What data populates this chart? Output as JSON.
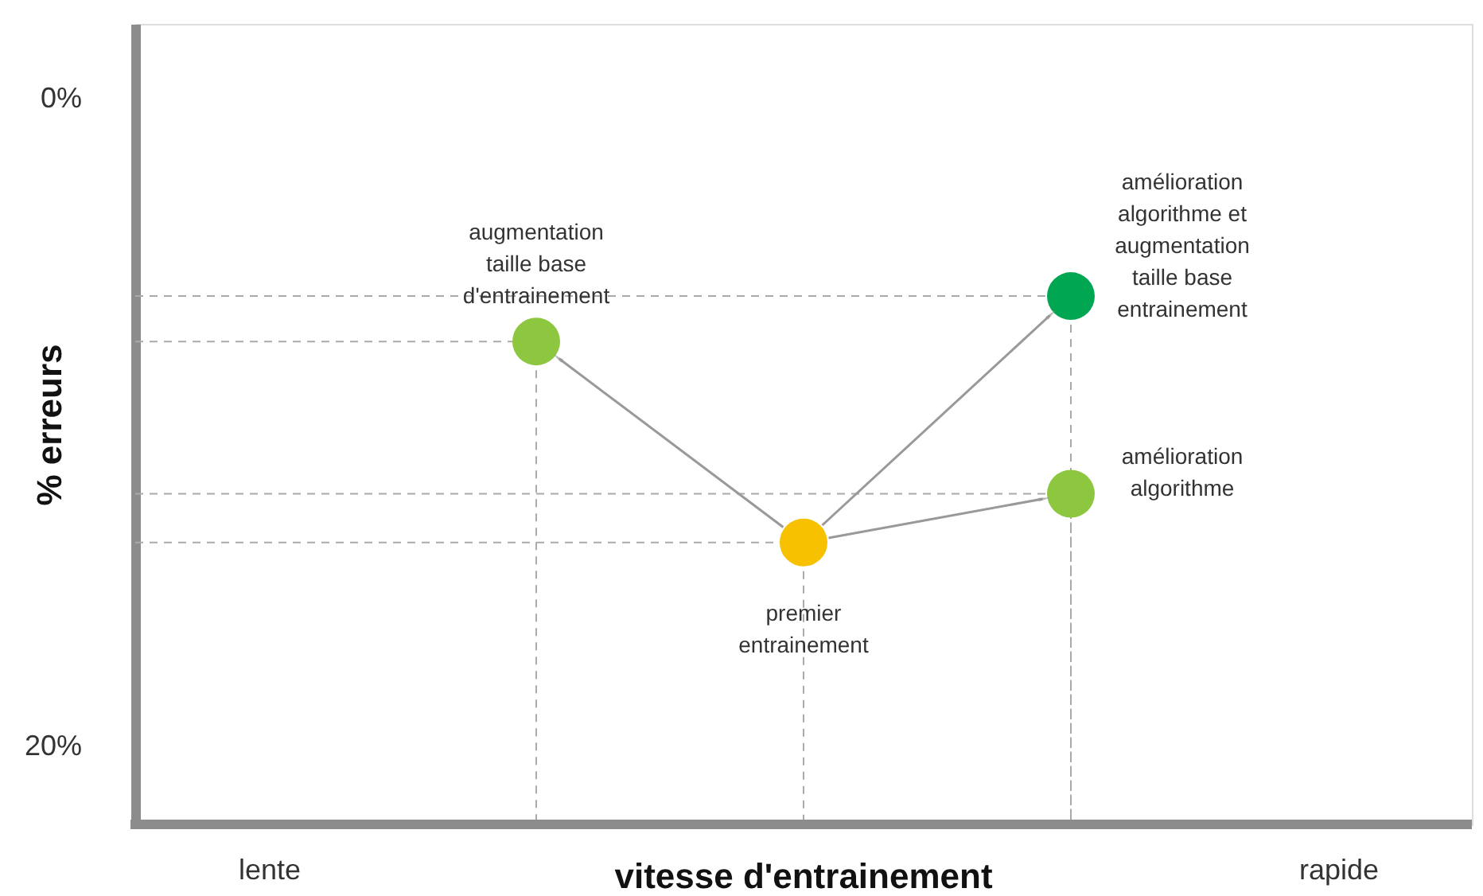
{
  "chart_data": {
    "type": "scatter",
    "xlabel": "vitesse d'entrainement",
    "ylabel": "% erreurs",
    "categories": [
      "lente",
      null,
      null,
      null,
      "rapide"
    ],
    "series": [
      {
        "values": [
          null,
          7.5,
          13.7,
          6.1,
          null
        ],
        "colors": [
          null,
          "#8dc63f",
          "#f7c100",
          "#00a651",
          null
        ]
      },
      {
        "values": [
          null,
          null,
          null,
          12.2,
          null
        ],
        "color": "#8dc63f"
      }
    ],
    "ylim": [
      22.4,
      -2.3
    ],
    "yticks": [
      {
        "value": 0,
        "label": "0%"
      },
      {
        "value": 20,
        "label": "20%"
      }
    ],
    "marker": "circle",
    "ref_lines": [
      {
        "axis": "y",
        "value": 7.5,
        "color": "#aaaaaa",
        "line_style": "dashed"
      },
      {
        "axis": "y",
        "value": 13.7,
        "color": "#aaaaaa",
        "line_style": "dashed"
      },
      {
        "axis": "y",
        "value": 12.2,
        "color": "#aaaaaa",
        "line_style": "dashed"
      },
      {
        "axis": "y",
        "value": 6.1,
        "color": "#aaaaaa",
        "line_style": "dashed"
      }
    ],
    "annotations": [
      "augmentation\ntaille base\nd'entrainement",
      "premier\nentrainement",
      "amélioration\nalgorithme",
      "amélioration\nalgorithme et\naugmentation\ntaille base\nentrainement"
    ]
  }
}
